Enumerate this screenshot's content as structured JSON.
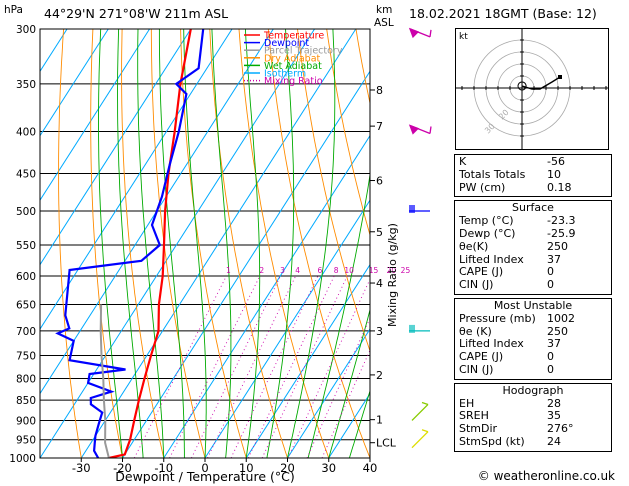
{
  "header": {
    "location": "44°29'N  271°08'W  211m  ASL",
    "datetime": "18.02.2021  18GMT  (Base: 12)"
  },
  "chart_data": {
    "type": "skew-t log-p",
    "xlabel": "Dewpoint / Temperature (°C)",
    "ylabel_left": "hPa",
    "ylabel_right_units": "km",
    "ylabel_right_sub": "ASL",
    "mixing_ratio_label": "Mixing Ratio (g/kg)",
    "pressure_levels": [
      300,
      350,
      400,
      450,
      500,
      550,
      600,
      650,
      700,
      750,
      800,
      850,
      900,
      950,
      1000
    ],
    "pressure_labels": [
      "300",
      "350",
      "400",
      "450",
      "500",
      "550",
      "600",
      "650",
      "700",
      "750",
      "800",
      "850",
      "900",
      "950",
      "1000"
    ],
    "temperature_ticks": [
      -30,
      -20,
      -10,
      0,
      10,
      20,
      30,
      40
    ],
    "temperature_tick_labels": [
      "-30",
      "-20",
      "-10",
      "0",
      "10",
      "20",
      "30",
      "40"
    ],
    "xlim": [
      -40,
      40
    ],
    "plim": [
      300,
      1000
    ],
    "km_ticks": [
      {
        "label": "8",
        "p": 356
      },
      {
        "label": "7",
        "p": 394
      },
      {
        "label": "6",
        "p": 459
      },
      {
        "label": "5",
        "p": 530
      },
      {
        "label": "4",
        "p": 612
      },
      {
        "label": "3",
        "p": 700
      },
      {
        "label": "2",
        "p": 792
      },
      {
        "label": "1",
        "p": 898
      },
      {
        "label": "LCL",
        "p": 958
      }
    ],
    "mixing_ratio_values": [
      "1",
      "2",
      "3",
      "4",
      "6",
      "8",
      "10",
      "15",
      "20",
      "25"
    ],
    "legend": [
      {
        "label": "Temperature",
        "color": "#ff0000"
      },
      {
        "label": "Dewpoint",
        "color": "#0000ff"
      },
      {
        "label": "Parcel Trajectory",
        "color": "#999999"
      },
      {
        "label": "Dry Adiabat",
        "color": "#ff8c00"
      },
      {
        "label": "Wet Adiabat",
        "color": "#00aa00"
      },
      {
        "label": "Isotherm",
        "color": "#00aaff"
      },
      {
        "label": "Mixing Ratio",
        "color": "#cc00aa"
      }
    ],
    "series": [
      {
        "name": "Temperature",
        "points": [
          [
            1000,
            -23.3
          ],
          [
            990,
            -20
          ],
          [
            950,
            -21
          ],
          [
            900,
            -23
          ],
          [
            850,
            -25
          ],
          [
            800,
            -27
          ],
          [
            750,
            -29
          ],
          [
            700,
            -31
          ],
          [
            650,
            -35
          ],
          [
            600,
            -38.5
          ],
          [
            550,
            -43
          ],
          [
            500,
            -48
          ],
          [
            450,
            -53
          ],
          [
            400,
            -58
          ],
          [
            350,
            -64
          ],
          [
            300,
            -70
          ]
        ]
      },
      {
        "name": "Dewpoint",
        "points": [
          [
            1000,
            -25.9
          ],
          [
            980,
            -28
          ],
          [
            960,
            -29
          ],
          [
            940,
            -30
          ],
          [
            910,
            -31
          ],
          [
            880,
            -32
          ],
          [
            860,
            -36
          ],
          [
            845,
            -37
          ],
          [
            830,
            -33
          ],
          [
            810,
            -40
          ],
          [
            790,
            -41
          ],
          [
            780,
            -33
          ],
          [
            760,
            -48
          ],
          [
            720,
            -50
          ],
          [
            705,
            -55
          ],
          [
            695,
            -53
          ],
          [
            670,
            -56
          ],
          [
            590,
            -62
          ],
          [
            575,
            -46
          ],
          [
            550,
            -44
          ],
          [
            520,
            -49
          ],
          [
            480,
            -51
          ],
          [
            440,
            -54
          ],
          [
            400,
            -57
          ],
          [
            360,
            -61
          ],
          [
            350,
            -65
          ],
          [
            335,
            -62
          ],
          [
            300,
            -67
          ]
        ]
      },
      {
        "name": "Parcel Trajectory",
        "points": [
          [
            1000,
            -23.3
          ],
          [
            958,
            -26.6
          ],
          [
            900,
            -30
          ],
          [
            850,
            -33.5
          ],
          [
            800,
            -37
          ],
          [
            750,
            -41
          ],
          [
            700,
            -45
          ],
          [
            650,
            -49
          ]
        ]
      }
    ]
  },
  "hodograph": {
    "unit_label": "kt",
    "ring_labels": [
      "20",
      "30"
    ]
  },
  "indices": [
    {
      "name": "K",
      "value": "-56"
    },
    {
      "name": "Totals Totals",
      "value": "10"
    },
    {
      "name": "PW (cm)",
      "value": "0.18"
    }
  ],
  "surface": {
    "title": "Surface",
    "rows": [
      {
        "name": "Temp (°C)",
        "value": "-23.3"
      },
      {
        "name": "Dewp (°C)",
        "value": "-25.9"
      },
      {
        "name": "θe(K)",
        "value": "250"
      },
      {
        "name": "Lifted Index",
        "value": "37"
      },
      {
        "name": "CAPE (J)",
        "value": "0"
      },
      {
        "name": "CIN (J)",
        "value": "0"
      }
    ]
  },
  "most_unstable": {
    "title": "Most Unstable",
    "rows": [
      {
        "name": "Pressure (mb)",
        "value": "1002"
      },
      {
        "name": "θe (K)",
        "value": "250"
      },
      {
        "name": "Lifted Index",
        "value": "37"
      },
      {
        "name": "CAPE (J)",
        "value": "0"
      },
      {
        "name": "CIN (J)",
        "value": "0"
      }
    ]
  },
  "hodograph_stats": {
    "title": "Hodograph",
    "rows": [
      {
        "name": "EH",
        "value": "28"
      },
      {
        "name": "SREH",
        "value": "35"
      },
      {
        "name": "StmDir",
        "value": "276°"
      },
      {
        "name": "StmSpd (kt)",
        "value": "24"
      }
    ]
  },
  "copyright": "© weatheronline.co.uk"
}
